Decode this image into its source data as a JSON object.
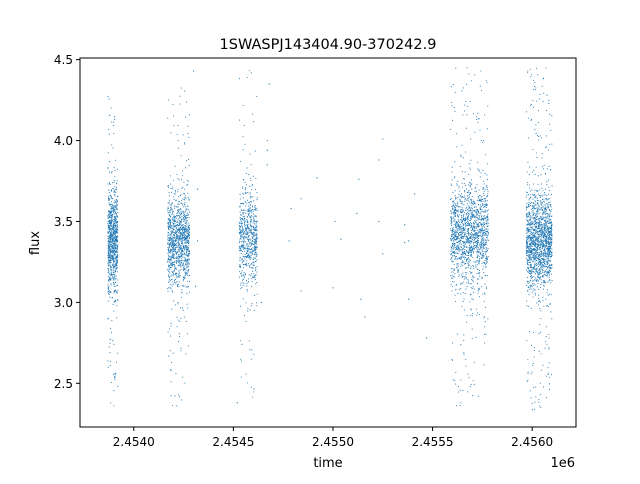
{
  "chart_data": {
    "type": "scatter",
    "title": "1SWASPJ143404.90-370242.9",
    "xlabel": "time",
    "ylabel": "flux",
    "x_offset_label": "1e6",
    "xlim": [
      2.45373,
      2.45622
    ],
    "ylim": [
      2.23,
      4.51
    ],
    "x_ticks": [
      2.454,
      2.4545,
      2.455,
      2.4555,
      2.456
    ],
    "x_tick_labels": [
      "2.4540",
      "2.4545",
      "2.4550",
      "2.4555",
      "2.4560"
    ],
    "y_ticks": [
      2.5,
      3.0,
      3.5,
      4.0,
      4.5
    ],
    "y_tick_labels": [
      "2.5",
      "3.0",
      "3.5",
      "4.0",
      "4.5"
    ],
    "grid": false,
    "legend": "none",
    "marker_color": "#1f77b4",
    "series": [
      {
        "clusters": [
          {
            "x_range": [
              2.45387,
              2.45392
            ],
            "center": 3.38,
            "spread": 0.15,
            "min": 2.36,
            "max": 4.33,
            "count": 900
          },
          {
            "x_range": [
              2.45417,
              2.45428
            ],
            "center": 3.38,
            "spread": 0.14,
            "min": 2.36,
            "max": 4.33,
            "count": 1100
          },
          {
            "x_range": [
              2.45453,
              2.45462
            ],
            "center": 3.4,
            "spread": 0.15,
            "min": 2.38,
            "max": 4.45,
            "count": 650
          },
          {
            "x_range": [
              2.45559,
              2.45578
            ],
            "center": 3.42,
            "spread": 0.15,
            "min": 2.36,
            "max": 4.45,
            "count": 1500
          },
          {
            "x_range": [
              2.45597,
              2.4561
            ],
            "center": 3.38,
            "spread": 0.15,
            "min": 2.33,
            "max": 4.45,
            "count": 1600
          }
        ],
        "sparse_points": [
          [
            2.45484,
            3.64
          ],
          [
            2.45484,
            3.07
          ],
          [
            2.45478,
            3.38
          ],
          [
            2.45492,
            3.77
          ],
          [
            2.45501,
            3.5
          ],
          [
            2.455,
            3.09
          ],
          [
            2.45504,
            3.39
          ],
          [
            2.45513,
            3.76
          ],
          [
            2.45514,
            3.02
          ],
          [
            2.45516,
            2.91
          ],
          [
            2.45523,
            3.5
          ],
          [
            2.45523,
            3.88
          ],
          [
            2.45525,
            3.3
          ],
          [
            2.45536,
            3.48
          ],
          [
            2.45538,
            3.02
          ],
          [
            2.45541,
            3.67
          ],
          [
            2.45538,
            3.38
          ],
          [
            2.45547,
            2.78
          ],
          [
            2.45432,
            3.7
          ],
          [
            2.45432,
            3.38
          ],
          [
            2.45467,
            3.94
          ],
          [
            2.45467,
            4.0
          ],
          [
            2.45467,
            3.85
          ],
          [
            2.45468,
            4.35
          ],
          [
            2.45464,
            3.0
          ],
          [
            2.45452,
            2.38
          ],
          [
            2.4543,
            4.43
          ],
          [
            2.45431,
            3.1
          ],
          [
            2.45479,
            3.58
          ],
          [
            2.45512,
            3.55
          ],
          [
            2.45536,
            3.37
          ],
          [
            2.45525,
            4.01
          ]
        ]
      }
    ]
  }
}
